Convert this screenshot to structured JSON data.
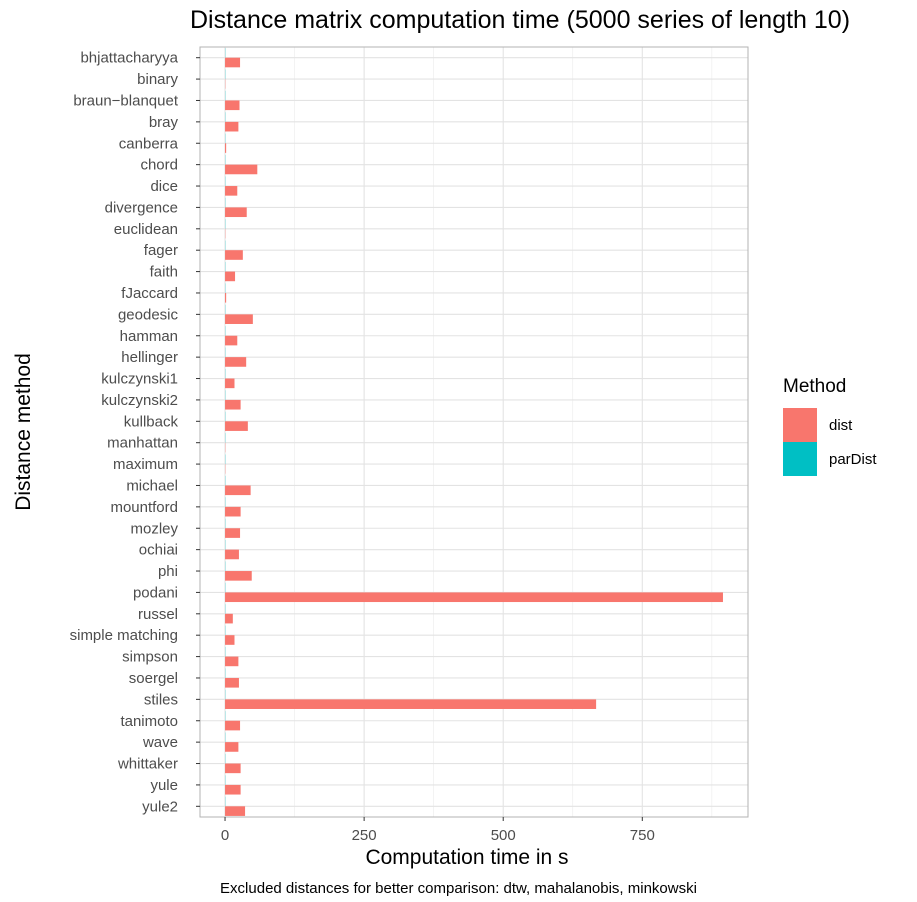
{
  "chart_data": {
    "type": "bar",
    "orientation": "horizontal",
    "title": "Distance matrix computation time (5000 series of length 10)",
    "xlabel": "Computation time in s",
    "ylabel": "Distance method",
    "caption": "Excluded distances for better comparison: dtw, mahalanobis, minkowski",
    "categories": [
      "bhjattacharyya",
      "binary",
      "braun−blanquet",
      "bray",
      "canberra",
      "chord",
      "dice",
      "divergence",
      "euclidean",
      "fager",
      "faith",
      "fJaccard",
      "geodesic",
      "hamman",
      "hellinger",
      "kulczynski1",
      "kulczynski2",
      "kullback",
      "manhattan",
      "maximum",
      "michael",
      "mountford",
      "mozley",
      "ochiai",
      "phi",
      "podani",
      "russel",
      "simple matching",
      "simpson",
      "soergel",
      "stiles",
      "tanimoto",
      "wave",
      "whittaker",
      "yule",
      "yule2"
    ],
    "series": [
      {
        "name": "dist",
        "color": "#F8766D",
        "values": [
          27,
          0.5,
          26,
          24,
          2,
          58,
          22,
          39,
          0.5,
          32,
          18,
          2,
          50,
          22,
          38,
          17,
          28,
          41,
          0.5,
          0.5,
          46,
          28,
          27,
          25,
          48,
          895,
          14,
          17,
          24,
          25,
          667,
          27,
          24,
          28,
          28,
          36
        ]
      },
      {
        "name": "parDist",
        "color": "#00BFC4",
        "values": [
          0.4,
          0.4,
          0.4,
          0.4,
          0.4,
          0.4,
          0.4,
          0.4,
          0.4,
          0.4,
          0.4,
          0.4,
          0.4,
          0.4,
          0.4,
          0.4,
          0.4,
          0.4,
          0.4,
          0.4,
          0.4,
          0.4,
          0.4,
          0.4,
          0.4,
          0.4,
          0.4,
          0.4,
          0.4,
          0.4,
          0.4,
          0.4,
          0.4,
          0.4,
          0.4,
          0.4
        ]
      }
    ],
    "x_ticks": [
      0,
      250,
      500,
      750
    ],
    "x_tick_labels": [
      "0",
      "250",
      "500",
      "750"
    ],
    "xlim": [
      -45,
      940
    ],
    "grid": true,
    "legend": {
      "title": "Method",
      "position": "right"
    }
  }
}
